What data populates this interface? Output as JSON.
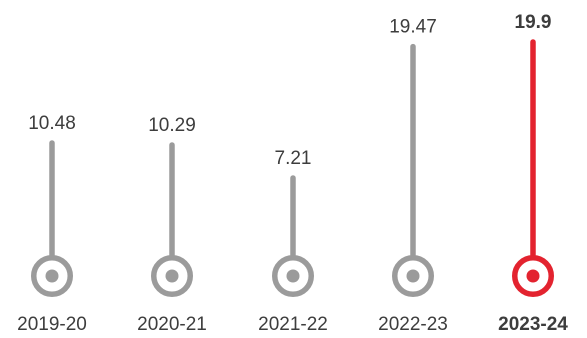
{
  "chart_data": {
    "type": "lollipop",
    "title": "",
    "xlabel": "",
    "ylabel": "",
    "categories": [
      "2019-20",
      "2020-21",
      "2021-22",
      "2022-23",
      "2023-24"
    ],
    "values": [
      10.48,
      10.29,
      7.21,
      19.47,
      19.9
    ],
    "value_labels": [
      "10.48",
      "10.29",
      "7.21",
      "19.47",
      "19.9"
    ],
    "highlight_index": 4,
    "colors": {
      "default": "#9b9b9b",
      "highlight": "#e3232f",
      "text": "#3d3d3d"
    },
    "grid": false,
    "legend": "none"
  }
}
